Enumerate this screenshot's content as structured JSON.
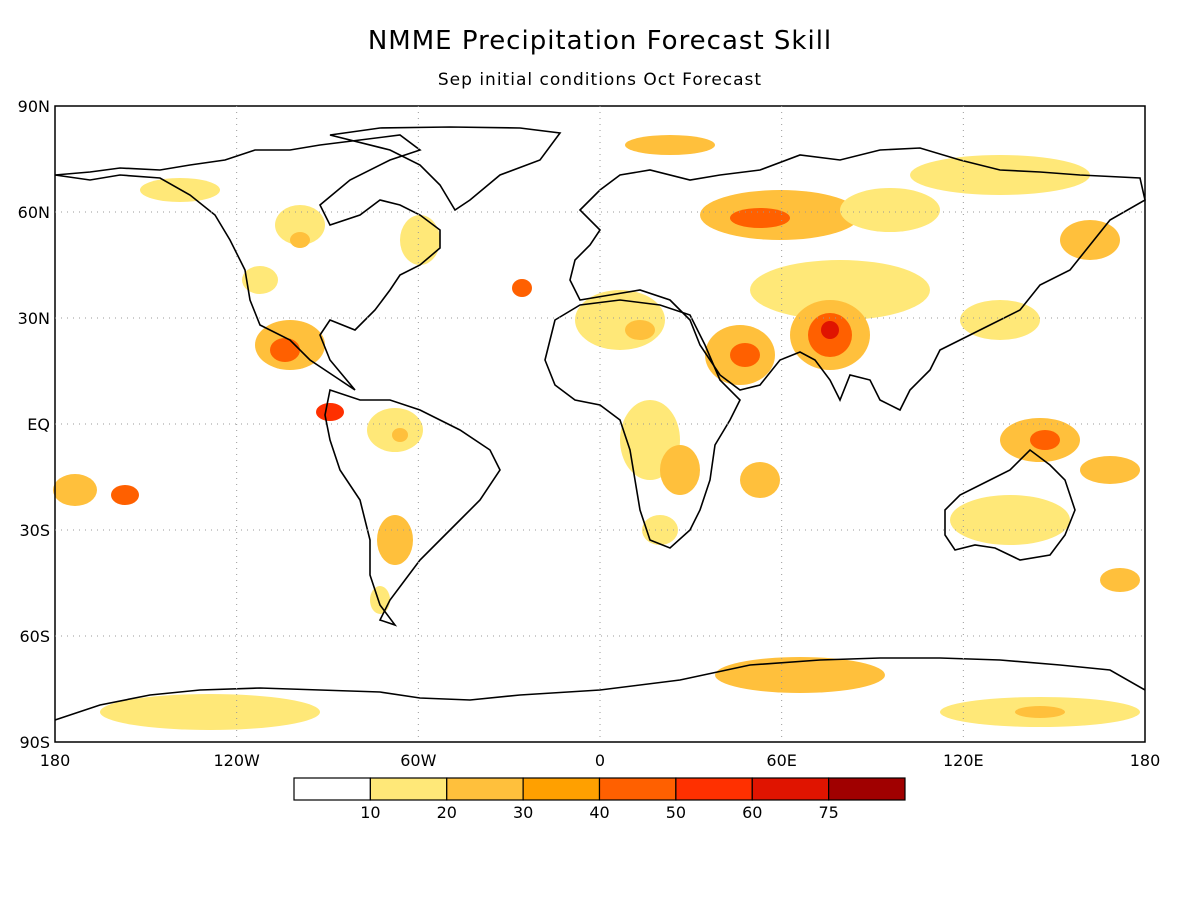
{
  "title": "NMME Precipitation Forecast Skill",
  "subtitle": "Sep initial conditions  Oct Forecast",
  "lat_ticks": [
    {
      "lat": 90,
      "label": "90N"
    },
    {
      "lat": 60,
      "label": "60N"
    },
    {
      "lat": 30,
      "label": "30N"
    },
    {
      "lat": 0,
      "label": "EQ"
    },
    {
      "lat": -30,
      "label": "30S"
    },
    {
      "lat": -60,
      "label": "60S"
    },
    {
      "lat": -90,
      "label": "90S"
    }
  ],
  "lon_ticks": [
    {
      "lon": 0,
      "label": "180"
    },
    {
      "lon": 60,
      "label": "120W"
    },
    {
      "lon": 120,
      "label": "60W"
    },
    {
      "lon": 180,
      "label": "0"
    },
    {
      "lon": 240,
      "label": "60E"
    },
    {
      "lon": 300,
      "label": "120E"
    },
    {
      "lon": 360,
      "label": "180"
    }
  ],
  "colorbar": {
    "colors": [
      "#ffffff",
      "#ffe878",
      "#ffc03c",
      "#ffa000",
      "#ff6000",
      "#ff3000",
      "#e01400",
      "#a00000"
    ],
    "labels": [
      "10",
      "20",
      "30",
      "40",
      "50",
      "60",
      "75"
    ]
  },
  "colors": {
    "skill_low": "#ffe878",
    "skill_mid": "#ffc03c",
    "skill_high": "#ff6000",
    "skill_max": "#e01400"
  }
}
